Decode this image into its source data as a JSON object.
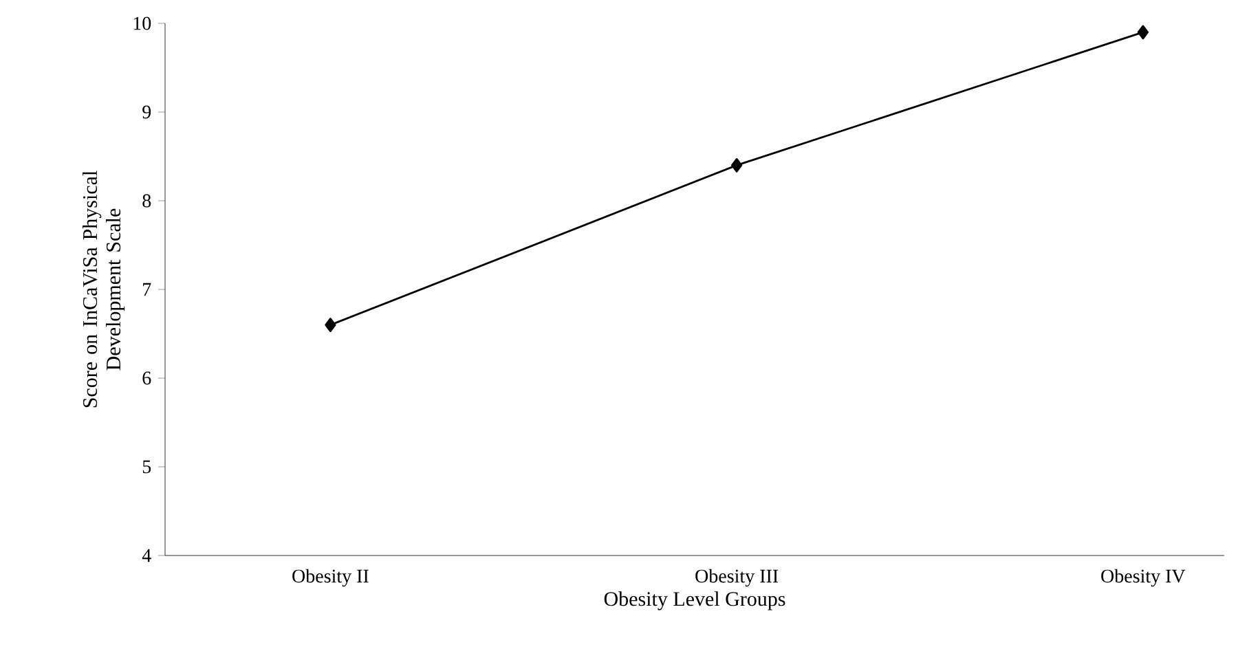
{
  "chart_data": {
    "type": "line",
    "categories": [
      "Obesity II",
      "Obesity III",
      "Obesity IV"
    ],
    "series": [
      {
        "color": "#000000",
        "values": [
          6.6,
          8.4,
          9.9
        ]
      }
    ],
    "xlabel": "Obesity Level Groups",
    "ylabel": "Score on InCaViSa Physical Development Scale",
    "ylim": [
      4,
      10
    ],
    "yticks": [
      4,
      5,
      6,
      7,
      8,
      9,
      10
    ],
    "marker": "diamond",
    "line_style": "solid"
  }
}
